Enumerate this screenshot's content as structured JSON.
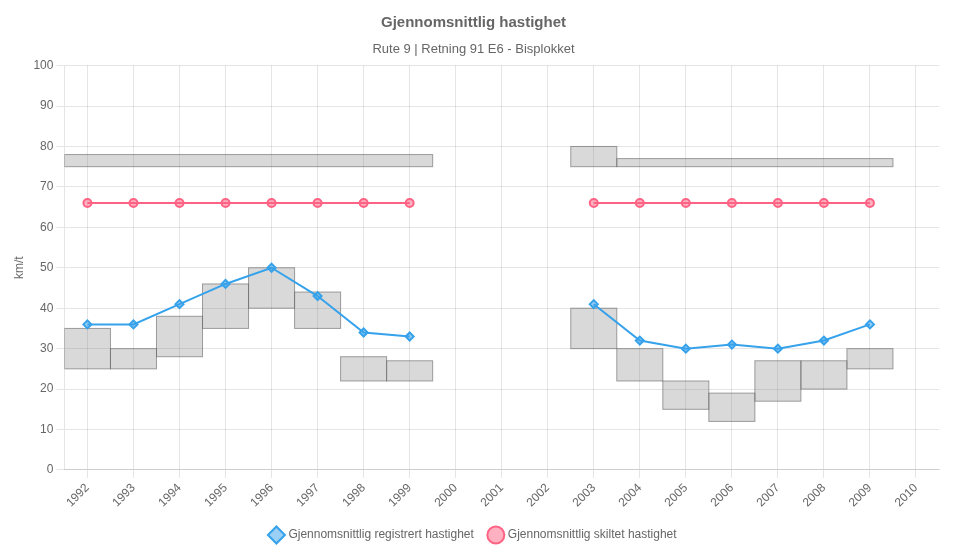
{
  "chart_data": {
    "type": "line",
    "title": "Gjennomsnittlig hastighet",
    "subtitle": "Rute 9 | Retning 91 E6 - Bisplokket",
    "y_label": "km/t",
    "x": [
      1992,
      1993,
      1994,
      1995,
      1996,
      1997,
      1998,
      1999,
      2000,
      2001,
      2002,
      2003,
      2004,
      2005,
      2006,
      2007,
      2008,
      2009
    ],
    "series": [
      {
        "name": "Gjennomsnittlig registrert hastighet",
        "marker": "diamond",
        "values": [
          36,
          36,
          41,
          46,
          50,
          43,
          34,
          33,
          null,
          null,
          null,
          41,
          32,
          30,
          31,
          30,
          32,
          36
        ]
      },
      {
        "name": "Gjennomsnittlig skiltet hastighet",
        "marker": "circle",
        "values": [
          66,
          66,
          66,
          66,
          66,
          66,
          66,
          66,
          null,
          null,
          null,
          66,
          66,
          66,
          66,
          66,
          66,
          66
        ]
      }
    ],
    "ranges": [
      {
        "x0": 1991.5,
        "x1": 1992.5,
        "y0": 25,
        "y1": 35
      },
      {
        "x0": 1992.5,
        "x1": 1993.5,
        "y0": 25,
        "y1": 30
      },
      {
        "x0": 1993.5,
        "x1": 1994.5,
        "y0": 28,
        "y1": 38
      },
      {
        "x0": 1994.5,
        "x1": 1995.5,
        "y0": 35,
        "y1": 46
      },
      {
        "x0": 1995.5,
        "x1": 1996.5,
        "y0": 40,
        "y1": 50
      },
      {
        "x0": 1996.5,
        "x1": 1997.5,
        "y0": 35,
        "y1": 44
      },
      {
        "x0": 1997.5,
        "x1": 1998.5,
        "y0": 22,
        "y1": 28
      },
      {
        "x0": 1998.5,
        "x1": 1999.5,
        "y0": 22,
        "y1": 27
      },
      {
        "x0": 2002.5,
        "x1": 2003.5,
        "y0": 30,
        "y1": 40
      },
      {
        "x0": 2003.5,
        "x1": 2004.5,
        "y0": 22,
        "y1": 30
      },
      {
        "x0": 2004.5,
        "x1": 2005.5,
        "y0": 15,
        "y1": 22
      },
      {
        "x0": 2005.5,
        "x1": 2006.5,
        "y0": 12,
        "y1": 19
      },
      {
        "x0": 2006.5,
        "x1": 2007.5,
        "y0": 17,
        "y1": 27
      },
      {
        "x0": 2007.5,
        "x1": 2008.5,
        "y0": 20,
        "y1": 27
      },
      {
        "x0": 2008.5,
        "x1": 2009.5,
        "y0": 25,
        "y1": 30
      },
      {
        "x0": 1991.5,
        "x1": 1999.5,
        "y0": 75,
        "y1": 78
      },
      {
        "x0": 2002.5,
        "x1": 2003.5,
        "y0": 75,
        "y1": 80
      },
      {
        "x0": 2003.5,
        "x1": 2009.5,
        "y0": 75,
        "y1": 77
      }
    ],
    "xlim": [
      1991.5,
      2010.5
    ],
    "xticks": [
      1992,
      1993,
      1994,
      1995,
      1996,
      1997,
      1998,
      1999,
      2000,
      2001,
      2002,
      2003,
      2004,
      2005,
      2006,
      2007,
      2008,
      2009,
      2010
    ],
    "ylim": [
      0,
      100
    ],
    "yticks": [
      0,
      10,
      20,
      30,
      40,
      50,
      60,
      70,
      80,
      90,
      100
    ],
    "grid": true,
    "legend": "bottom"
  }
}
